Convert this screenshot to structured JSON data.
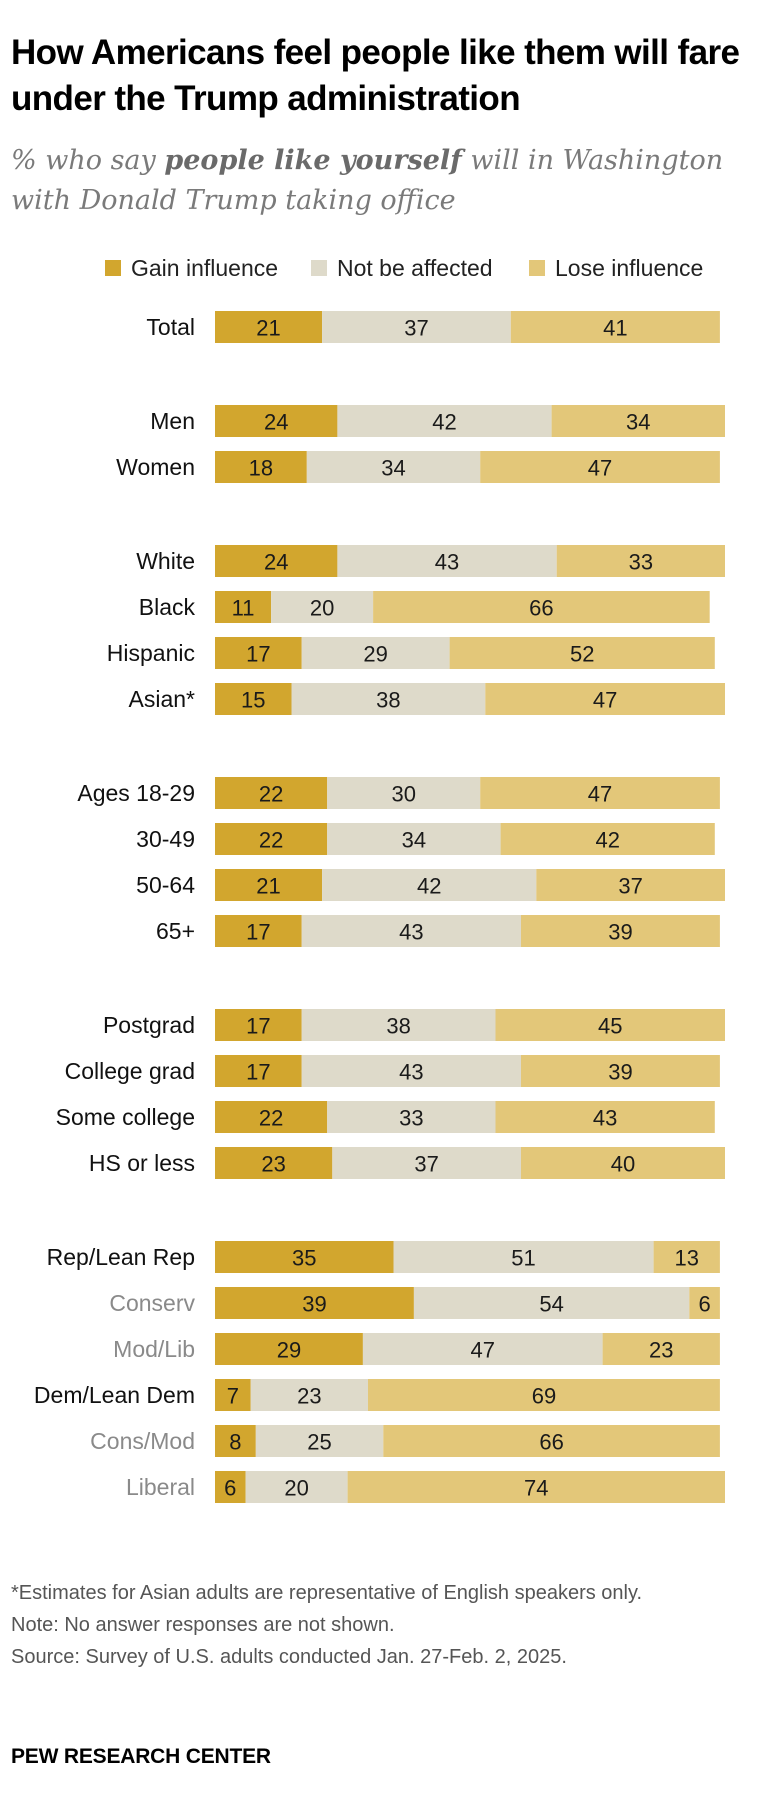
{
  "title": "How Americans feel people like them will fare under the Trump administration",
  "subtitle": {
    "before": "% who say ",
    "emphasis": "people like yourself",
    "after": " will in Washington with Donald Trump taking office"
  },
  "colors": {
    "gain": "#D2A62E",
    "neutral": "#DEDACA",
    "lose": "#E3C779",
    "label_primary": "#111111",
    "label_secondary": "#8a8a8a"
  },
  "chart_data": {
    "type": "bar",
    "orientation": "horizontal",
    "stacked": true,
    "series": [
      {
        "name": "Gain influence",
        "color": "#D2A62E"
      },
      {
        "name": "Not be affected",
        "color": "#DEDACA"
      },
      {
        "name": "Lose influence",
        "color": "#E3C779"
      }
    ],
    "legend_placement": "top",
    "grid": false,
    "xlim": [
      0,
      100
    ],
    "groups": [
      {
        "rows": [
          {
            "label": "Total",
            "values": [
              21,
              37,
              41
            ]
          }
        ]
      },
      {
        "rows": [
          {
            "label": "Men",
            "values": [
              24,
              42,
              34
            ]
          },
          {
            "label": "Women",
            "values": [
              18,
              34,
              47
            ]
          }
        ]
      },
      {
        "rows": [
          {
            "label": "White",
            "values": [
              24,
              43,
              33
            ]
          },
          {
            "label": "Black",
            "values": [
              11,
              20,
              66
            ]
          },
          {
            "label": "Hispanic",
            "values": [
              17,
              29,
              52
            ]
          },
          {
            "label": "Asian*",
            "values": [
              15,
              38,
              47
            ]
          }
        ]
      },
      {
        "rows": [
          {
            "label": "Ages 18-29",
            "values": [
              22,
              30,
              47
            ]
          },
          {
            "label": "30-49",
            "values": [
              22,
              34,
              42
            ]
          },
          {
            "label": "50-64",
            "values": [
              21,
              42,
              37
            ]
          },
          {
            "label": "65+",
            "values": [
              17,
              43,
              39
            ]
          }
        ]
      },
      {
        "rows": [
          {
            "label": "Postgrad",
            "values": [
              17,
              38,
              45
            ]
          },
          {
            "label": "College grad",
            "values": [
              17,
              43,
              39
            ]
          },
          {
            "label": "Some college",
            "values": [
              22,
              33,
              43
            ]
          },
          {
            "label": "HS or less",
            "values": [
              23,
              37,
              40
            ]
          }
        ]
      },
      {
        "rows": [
          {
            "label": "Rep/Lean Rep",
            "values": [
              35,
              51,
              13
            ]
          },
          {
            "label": "Conserv",
            "values": [
              39,
              54,
              6
            ],
            "secondary": true
          },
          {
            "label": "Mod/Lib",
            "values": [
              29,
              47,
              23
            ],
            "secondary": true
          },
          {
            "label": "Dem/Lean Dem",
            "values": [
              7,
              23,
              69
            ]
          },
          {
            "label": "Cons/Mod",
            "values": [
              8,
              25,
              66
            ],
            "secondary": true
          },
          {
            "label": "Liberal",
            "values": [
              6,
              20,
              74
            ],
            "secondary": true
          }
        ]
      }
    ]
  },
  "notes": {
    "asterisk": "*Estimates for Asian adults are representative of English speakers only.",
    "note": "Note: No answer responses are not shown.",
    "source": "Source: Survey of U.S. adults conducted Jan. 27-Feb. 2, 2025."
  },
  "footer": "PEW RESEARCH CENTER"
}
